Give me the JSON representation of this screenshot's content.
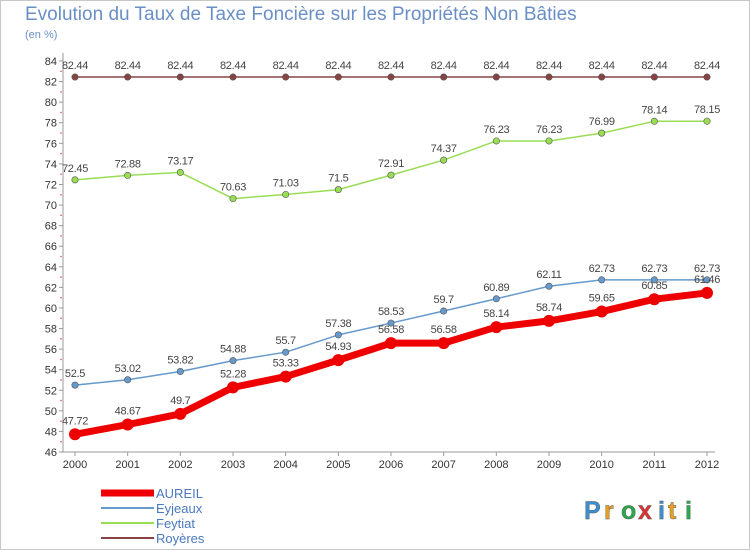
{
  "header": {
    "title": "Evolution du Taux de Taxe Foncière sur les Propriétés Non Bâties",
    "subtitle": "(en %)"
  },
  "brand": {
    "name": "Proxiti"
  },
  "chart_data": {
    "type": "line",
    "x": [
      "2000",
      "2001",
      "2002",
      "2003",
      "2004",
      "2005",
      "2006",
      "2007",
      "2008",
      "2009",
      "2010",
      "2011",
      "2012"
    ],
    "ylim": [
      46,
      84
    ],
    "yticks": [
      46,
      48,
      50,
      52,
      54,
      56,
      58,
      60,
      62,
      64,
      66,
      68,
      70,
      72,
      74,
      76,
      78,
      80,
      82,
      84
    ],
    "grid": false,
    "legend_position": "bottom-left",
    "series": [
      {
        "name": "AUREIL",
        "color": "#ee0000",
        "values": [
          47.72,
          48.67,
          49.7,
          52.28,
          53.33,
          54.93,
          56.58,
          56.58,
          58.14,
          58.74,
          59.65,
          60.85,
          61.46
        ],
        "labels": [
          "47.72",
          "48.67",
          "49.7",
          "52.28",
          "53.33",
          "54.93",
          "56.58",
          "56.58",
          "58.14",
          "58.74",
          "59.65",
          "60.85",
          "61.46"
        ]
      },
      {
        "name": "Eyjeaux",
        "color": "#6699cc",
        "values": [
          52.5,
          53.02,
          53.82,
          54.88,
          55.7,
          57.38,
          58.53,
          59.7,
          60.89,
          62.11,
          62.73,
          62.73,
          62.73
        ],
        "labels": [
          "52.5",
          "53.02",
          "53.82",
          "54.88",
          "55.7",
          "57.38",
          "58.53",
          "59.7",
          "60.89",
          "62.11",
          "62.73",
          "62.73",
          "62.73"
        ]
      },
      {
        "name": "Feytiat",
        "color": "#99dd55",
        "values": [
          72.45,
          72.88,
          73.17,
          70.63,
          71.03,
          71.5,
          72.91,
          74.37,
          76.23,
          76.23,
          76.99,
          78.14,
          78.15
        ],
        "labels": [
          "72.45",
          "72.88",
          "73.17",
          "70.63",
          "71.03",
          "71.5",
          "72.91",
          "74.37",
          "76.23",
          "76.23",
          "76.99",
          "78.14",
          "78.15"
        ]
      },
      {
        "name": "Royères",
        "color": "#884444",
        "values": [
          82.44,
          82.44,
          82.44,
          82.44,
          82.44,
          82.44,
          82.44,
          82.44,
          82.44,
          82.44,
          82.44,
          82.44,
          82.44
        ],
        "labels": [
          "82.44",
          "82.44",
          "82.44",
          "82.44",
          "82.44",
          "82.44",
          "82.44",
          "82.44",
          "82.44",
          "82.44",
          "82.44",
          "82.44",
          "82.44"
        ]
      }
    ]
  }
}
